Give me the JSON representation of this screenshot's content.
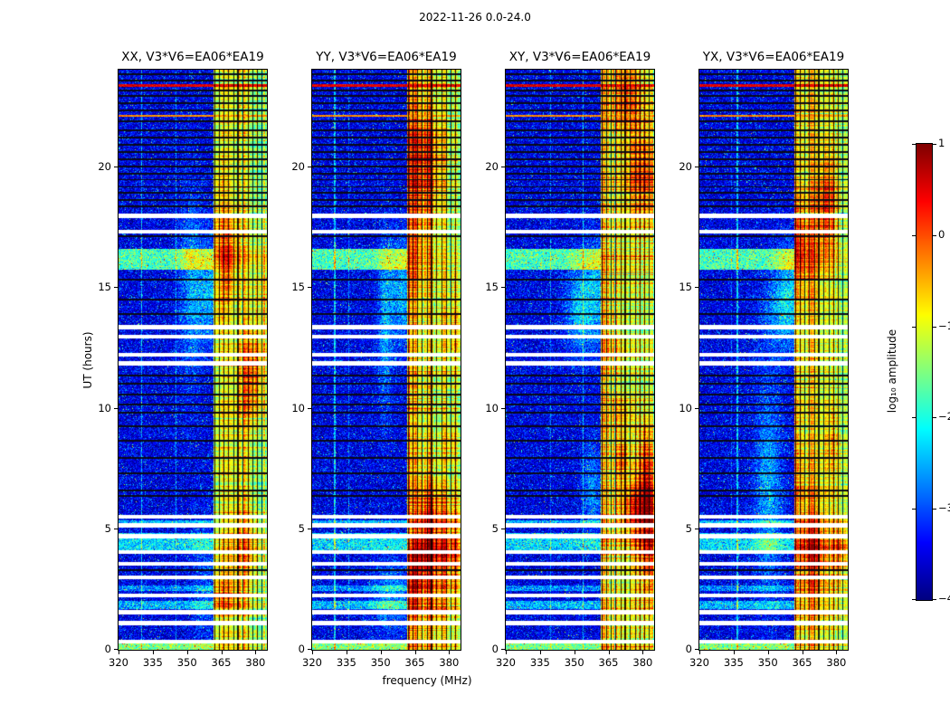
{
  "title": "2022-11-26 0.0-24.0",
  "chart_data": {
    "type": "heatmap",
    "title": "2022-11-26 0.0-24.0",
    "panels": [
      {
        "label": "XX, V3*V6=EA06*EA19"
      },
      {
        "label": "YY, V3*V6=EA06*EA19"
      },
      {
        "label": "XY, V3*V6=EA06*EA19"
      },
      {
        "label": "YX, V3*V6=EA06*EA19"
      }
    ],
    "x_axis": {
      "label": "frequency (MHz)",
      "min": 320,
      "max": 385,
      "ticks": [
        320,
        335,
        350,
        365,
        380
      ]
    },
    "y_axis": {
      "label": "UT (hours)",
      "min": 0,
      "max": 24,
      "ticks": [
        0,
        5,
        10,
        15,
        20
      ]
    },
    "colorbar": {
      "label": "log₁₀ amplitude",
      "min": -4,
      "max": 1,
      "ticks": [
        1,
        0,
        -1,
        -2,
        -3,
        -4
      ],
      "colormap": "jet"
    },
    "features": {
      "background_level": -3.5,
      "rfi_band": {
        "f_start": 361.5,
        "f_end": 385,
        "peak_level": -0.7
      },
      "band_dark_channels": [
        362.3,
        364.1,
        366.3,
        368.2,
        370.4,
        372.3,
        374.6,
        376.8,
        378.7,
        380.9,
        382.8
      ],
      "white_gaps_hours": [
        0.35,
        1.1,
        1.55,
        2.25,
        3.0,
        3.55,
        4.05,
        4.7,
        5.15,
        5.5,
        11.85,
        12.2,
        12.95,
        13.35,
        17.3,
        17.95
      ],
      "white_gap_width": 0.16,
      "flagged_rows_hours": [
        3.3,
        6.35,
        6.6,
        7.3,
        7.95,
        8.65,
        9.25,
        9.8,
        10.15,
        10.55,
        11.0,
        11.35,
        13.9,
        14.5,
        15.3,
        17.1,
        18.35,
        18.6,
        18.9,
        19.15,
        19.45,
        19.7,
        20.0,
        20.3,
        20.6,
        20.9,
        21.2,
        21.5,
        21.85,
        22.3,
        22.6,
        22.9,
        23.15,
        23.55,
        23.8
      ],
      "flagged_row_width": 0.07,
      "bright_bands": [
        {
          "hour": 16.15,
          "width": 0.85,
          "boost": 1.7
        },
        {
          "hour": 4.45,
          "width": 0.75,
          "boost": 1.2
        },
        {
          "hour": 1.85,
          "width": 0.35,
          "boost": 1.0
        },
        {
          "hour": 2.55,
          "width": 0.25,
          "boost": 0.8
        },
        {
          "hour": 5.3,
          "width": 0.12,
          "boost": 1.0
        },
        {
          "hour": 0.15,
          "width": 0.3,
          "boost": 2.0
        }
      ],
      "red_rows": [
        {
          "hour": 23.35,
          "width": 0.1,
          "level": 0.5
        },
        {
          "hour": 22.1,
          "width": 0.07,
          "level": -0.3
        }
      ]
    }
  }
}
